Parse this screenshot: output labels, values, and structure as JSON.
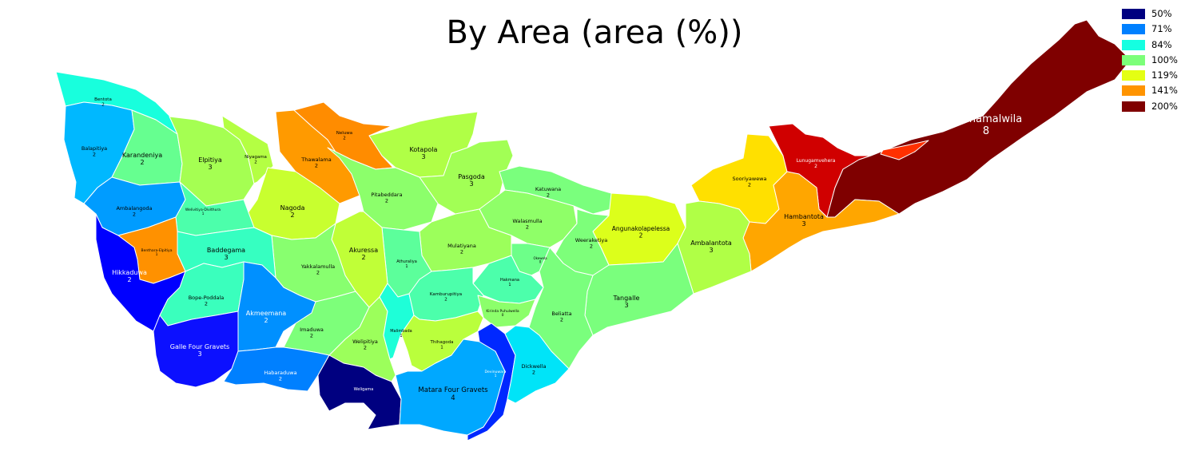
{
  "title": "By Area (area (%))",
  "legend": [
    {
      "label": "50%",
      "color": "#000080"
    },
    {
      "label": "71%",
      "color": "#0080ff"
    },
    {
      "label": "84%",
      "color": "#15ffe1"
    },
    {
      "label": "100%",
      "color": "#7cff79"
    },
    {
      "label": "119%",
      "color": "#e4ff13"
    },
    {
      "label": "141%",
      "color": "#ff9400"
    },
    {
      "label": "200%",
      "color": "#800000"
    }
  ],
  "regions": [
    {
      "name": "Bentota",
      "count": "2",
      "color": "#18ffdd"
    },
    {
      "name": "Balapitiya",
      "count": "2",
      "color": "#00b8ff"
    },
    {
      "name": "Karandeniya",
      "count": "2",
      "color": "#66ff90"
    },
    {
      "name": "Elpitiya",
      "count": "3",
      "color": "#a5ff52"
    },
    {
      "name": "Niyagama",
      "count": "2",
      "color": "#b4ff43"
    },
    {
      "name": "Thawalama",
      "count": "2",
      "color": "#ff9a00"
    },
    {
      "name": "Neluwa",
      "count": "2",
      "color": "#ff8c00"
    },
    {
      "name": "Kotapola",
      "count": "3",
      "color": "#b0ff46"
    },
    {
      "name": "Pasgoda",
      "count": "3",
      "color": "#a2ff55"
    },
    {
      "name": "Pitabeddara",
      "count": "2",
      "color": "#8cff6b"
    },
    {
      "name": "Nagoda",
      "count": "2",
      "color": "#c8ff2f"
    },
    {
      "name": "Ambalangoda",
      "count": "2",
      "color": "#009cff"
    },
    {
      "name": "Welivitiya-Divithura",
      "count": "1",
      "color": "#4cffab"
    },
    {
      "name": "Katuwana",
      "count": "2",
      "color": "#7aff7d"
    },
    {
      "name": "Walasmulla",
      "count": "2",
      "color": "#8fff68"
    },
    {
      "name": "Angunakolapelessa",
      "count": "2",
      "color": "#dcff1b"
    },
    {
      "name": "Weeraketiya",
      "count": "2",
      "color": "#7dff7a"
    },
    {
      "name": "Sooriyawewa",
      "count": "2",
      "color": "#ffe000"
    },
    {
      "name": "Lunugamvehera",
      "count": "2",
      "color": "#d00000"
    },
    {
      "name": "Thanamalwila",
      "count": "8",
      "color": "#7f0000"
    },
    {
      "name": "Hambantota",
      "count": "3",
      "color": "#ffa600"
    },
    {
      "name": "Ambalantota",
      "count": "3",
      "color": "#b0ff46"
    },
    {
      "name": "Tangalle",
      "count": "3",
      "color": "#7aff7d"
    },
    {
      "name": "Beliatta",
      "count": "2",
      "color": "#7aff7d"
    },
    {
      "name": "Okewela",
      "count": "0",
      "color": "#6dff89"
    },
    {
      "name": "Hakmana",
      "count": "1",
      "color": "#4cffab"
    },
    {
      "name": "Mulatiyana",
      "count": "2",
      "color": "#9cff5b"
    },
    {
      "name": "Athuraliya",
      "count": "1",
      "color": "#5cff9b"
    },
    {
      "name": "Akuressa",
      "count": "2",
      "color": "#c0ff37"
    },
    {
      "name": "Yakkalamulla",
      "count": "2",
      "color": "#88ff6f"
    },
    {
      "name": "Baddegama",
      "count": "3",
      "color": "#36ffc1"
    },
    {
      "name": "Benthara-Elpitiya",
      "count": "1",
      "color": "#ff9100"
    },
    {
      "name": "Hikkaduwa",
      "count": "2",
      "color": "#0000ff"
    },
    {
      "name": "Bope-Poddala",
      "count": "2",
      "color": "#3affbd"
    },
    {
      "name": "Akmeemana",
      "count": "2",
      "color": "#0090ff"
    },
    {
      "name": "Imaduwa",
      "count": "2",
      "color": "#7dff7a"
    },
    {
      "name": "Welipitiya",
      "count": "2",
      "color": "#9cff5b"
    },
    {
      "name": "Malimbada",
      "count": "1",
      "color": "#1effd8"
    },
    {
      "name": "Kamburupitiya",
      "count": "2",
      "color": "#4cffab"
    },
    {
      "name": "Kirinda Puhulwella",
      "count": "0",
      "color": "#8cff6b"
    },
    {
      "name": "Thihagoda",
      "count": "1",
      "color": "#baff3c"
    },
    {
      "name": "Galle Four Gravets",
      "count": "3",
      "color": "#0c10ff"
    },
    {
      "name": "Habaraduwa",
      "count": "2",
      "color": "#0080ff"
    },
    {
      "name": "Weligama",
      "count": "",
      "color": "#000080"
    },
    {
      "name": "Matara Four Gravets",
      "count": "4",
      "color": "#00a8ff"
    },
    {
      "name": "Devinuwara",
      "count": "1",
      "color": "#0028ff"
    },
    {
      "name": "Dickwella",
      "count": "2",
      "color": "#00e4f8"
    },
    {
      "name": "",
      "count": "",
      "color": "#ff3000"
    }
  ]
}
